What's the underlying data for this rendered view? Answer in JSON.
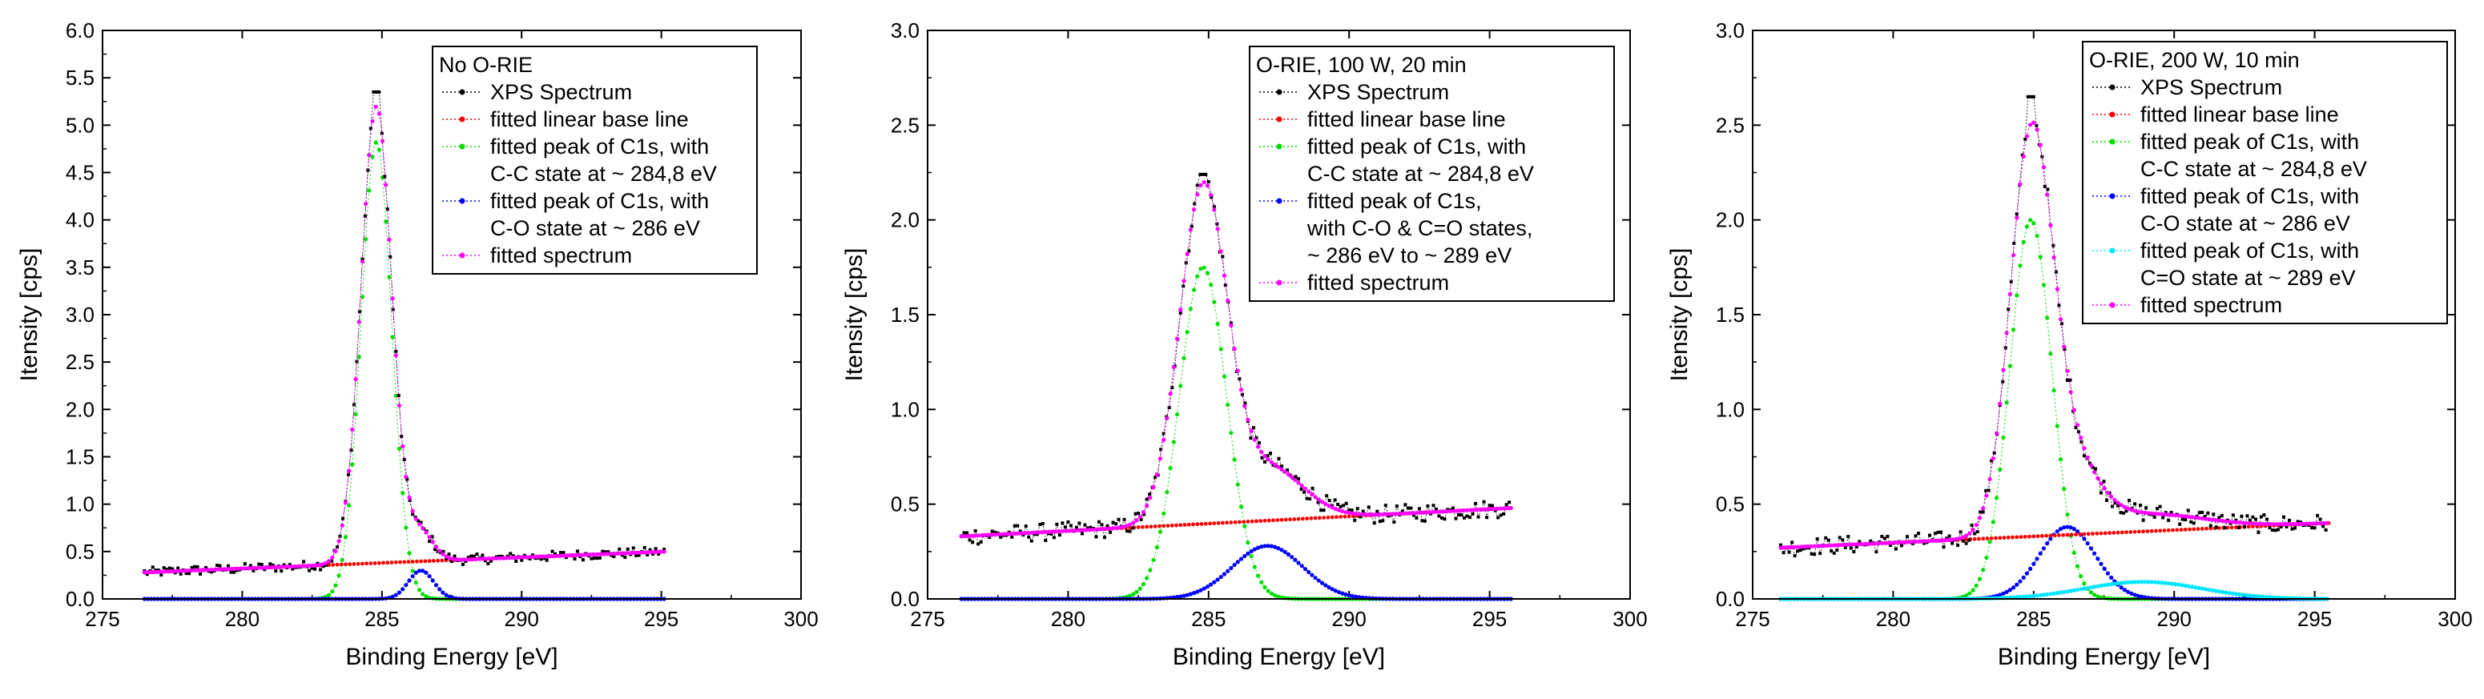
{
  "chart_data": [
    {
      "type": "scatter",
      "xlabel": "Binding Energy [eV]",
      "ylabel": "Itensity [cps]",
      "xlim": [
        275,
        300
      ],
      "ylim": [
        0,
        6.0
      ],
      "xticks": [
        275,
        280,
        285,
        290,
        295,
        300
      ],
      "yticks": [
        0.0,
        0.5,
        1.0,
        1.5,
        2.0,
        2.5,
        3.0,
        3.5,
        4.0,
        4.5,
        5.0,
        5.5,
        6.0
      ],
      "legend": {
        "title": "No O-RIE",
        "entries": [
          {
            "label": "XPS Spectrum",
            "color": "#000000"
          },
          {
            "label": "fitted linear base line",
            "color": "#ff0000"
          },
          {
            "label": "fitted peak of C1s, with\nC-C state at ~ 284,8 eV",
            "color": "#00dd00"
          },
          {
            "label": "fitted peak of C1s, with\nC-O state at ~ 286 eV",
            "color": "#0000ff"
          },
          {
            "label": "fitted spectrum",
            "color": "#ff00ff"
          }
        ]
      },
      "x_range": [
        276.5,
        295.2
      ],
      "baseline": [
        0.28,
        0.5
      ],
      "peaks": [
        {
          "center": 284.8,
          "height": 4.82,
          "sigma": 0.55,
          "color": "#00dd00"
        },
        {
          "center": 286.4,
          "height": 0.3,
          "sigma": 0.45,
          "color": "#0000ff"
        }
      ],
      "noise": 0.05,
      "spike_max": 5.35
    },
    {
      "type": "scatter",
      "xlabel": "Binding Energy [eV]",
      "ylabel": "Itensity [cps]",
      "xlim": [
        275,
        300
      ],
      "ylim": [
        0,
        3.0
      ],
      "xticks": [
        275,
        280,
        285,
        290,
        295,
        300
      ],
      "yticks": [
        0.0,
        0.5,
        1.0,
        1.5,
        2.0,
        2.5,
        3.0
      ],
      "legend": {
        "title": "O-RIE, 100 W, 20 min",
        "entries": [
          {
            "label": "XPS Spectrum",
            "color": "#000000"
          },
          {
            "label": "fitted linear base line",
            "color": "#ff0000"
          },
          {
            "label": "fitted peak of C1s, with\nC-C state at ~ 284,8 eV",
            "color": "#00dd00"
          },
          {
            "label": "fitted peak of C1s,\nwith C-O & C=O states,\n~ 286 eV to ~ 289 eV",
            "color": "#0000ff"
          },
          {
            "label": "fitted spectrum",
            "color": "#ff00ff"
          }
        ]
      },
      "x_range": [
        276.2,
        295.8
      ],
      "baseline": [
        0.33,
        0.48
      ],
      "peaks": [
        {
          "center": 284.8,
          "height": 1.75,
          "sigma": 0.85,
          "color": "#00dd00"
        },
        {
          "center": 287.1,
          "height": 0.28,
          "sigma": 1.25,
          "color": "#0000ff"
        }
      ],
      "noise": 0.045,
      "spike_max": 2.24
    },
    {
      "type": "scatter",
      "xlabel": "Binding Energy [eV]",
      "ylabel": "Itensity [cps]",
      "xlim": [
        275,
        300
      ],
      "ylim": [
        0,
        3.0
      ],
      "xticks": [
        275,
        280,
        285,
        290,
        295,
        300
      ],
      "yticks": [
        0.0,
        0.5,
        1.0,
        1.5,
        2.0,
        2.5,
        3.0
      ],
      "legend": {
        "title": "O-RIE, 200 W, 10 min",
        "entries": [
          {
            "label": "XPS Spectrum",
            "color": "#000000"
          },
          {
            "label": "fitted linear base line",
            "color": "#ff0000"
          },
          {
            "label": "fitted peak of C1s, with\nC-C state at ~ 284,8 eV",
            "color": "#00dd00"
          },
          {
            "label": "fitted peak of C1s, with\nC-O state at ~ 286 eV",
            "color": "#0000ff"
          },
          {
            "label": "fitted peak of C1s, with\nC=O state at ~ 289 eV",
            "color": "#00e5ff"
          },
          {
            "label": "fitted spectrum",
            "color": "#ff00ff"
          }
        ]
      },
      "x_range": [
        276.0,
        295.5
      ],
      "baseline": [
        0.27,
        0.4
      ],
      "peaks": [
        {
          "center": 284.9,
          "height": 2.0,
          "sigma": 0.75,
          "color": "#00dd00"
        },
        {
          "center": 286.2,
          "height": 0.38,
          "sigma": 1.0,
          "color": "#0000ff"
        },
        {
          "center": 288.9,
          "height": 0.09,
          "sigma": 2.1,
          "color": "#00e5ff"
        }
      ],
      "noise": 0.045,
      "spike_max": 2.65
    }
  ]
}
